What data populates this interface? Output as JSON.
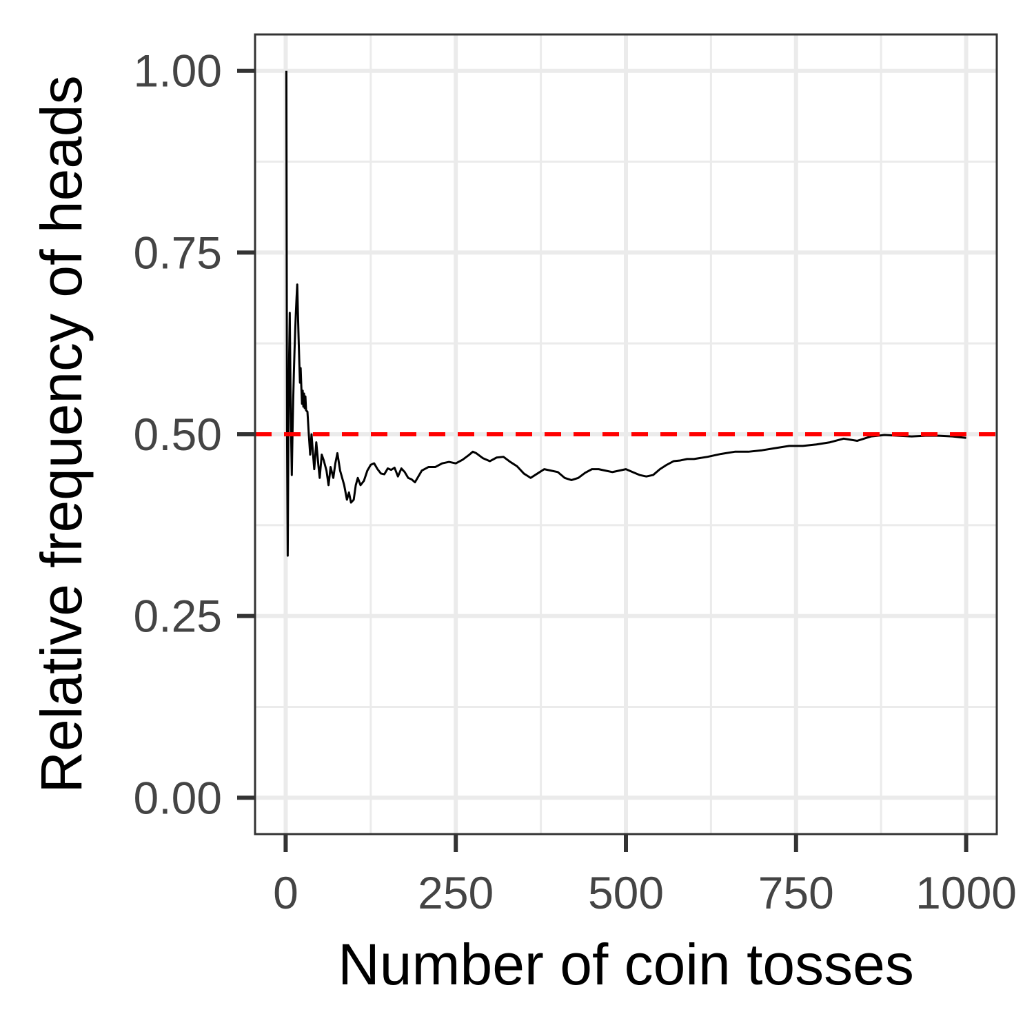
{
  "chart_data": {
    "type": "line",
    "title": "",
    "xlabel": "Number of coin tosses",
    "ylabel": "Relative frequency of heads",
    "xlim": [
      -45,
      1045
    ],
    "ylim": [
      -0.05,
      1.05
    ],
    "x_ticks": [
      0,
      250,
      500,
      750,
      1000
    ],
    "x_tick_labels": [
      "0",
      "250",
      "500",
      "750",
      "1000"
    ],
    "y_ticks": [
      0,
      0.25,
      0.5,
      0.75,
      1.0
    ],
    "y_tick_labels": [
      "0.00",
      "0.25",
      "0.50",
      "0.75",
      "1.00"
    ],
    "grid": true,
    "reference_line": {
      "y": 0.5,
      "color": "#ff0000",
      "style": "dashed"
    },
    "series": [
      {
        "color": "#000000",
        "x": [
          1,
          2,
          3,
          4,
          5,
          6,
          7,
          8,
          9,
          10,
          11,
          12,
          13,
          14,
          15,
          16,
          17,
          18,
          19,
          20,
          21,
          22,
          23,
          24,
          25,
          26,
          27,
          28,
          29,
          30,
          32,
          34,
          36,
          38,
          40,
          42,
          45,
          48,
          50,
          53,
          56,
          60,
          63,
          66,
          70,
          73,
          76,
          80,
          83,
          86,
          90,
          93,
          96,
          100,
          103,
          106,
          110,
          115,
          120,
          125,
          130,
          135,
          140,
          145,
          150,
          155,
          160,
          165,
          170,
          175,
          180,
          185,
          190,
          200,
          210,
          220,
          230,
          240,
          250,
          260,
          270,
          275,
          280,
          290,
          300,
          310,
          320,
          330,
          340,
          350,
          360,
          370,
          380,
          390,
          400,
          410,
          420,
          430,
          440,
          450,
          460,
          470,
          480,
          490,
          500,
          510,
          520,
          530,
          540,
          550,
          560,
          570,
          580,
          590,
          600,
          620,
          640,
          660,
          680,
          700,
          720,
          740,
          760,
          780,
          800,
          820,
          840,
          860,
          880,
          900,
          920,
          940,
          960,
          980,
          1000
        ],
        "y": [
          1.0,
          0.5,
          0.333,
          0.5,
          0.6,
          0.667,
          0.571,
          0.5,
          0.444,
          0.5,
          0.545,
          0.583,
          0.615,
          0.643,
          0.667,
          0.688,
          0.706,
          0.667,
          0.632,
          0.6,
          0.571,
          0.591,
          0.565,
          0.542,
          0.56,
          0.538,
          0.556,
          0.536,
          0.552,
          0.533,
          0.531,
          0.5,
          0.472,
          0.5,
          0.475,
          0.452,
          0.489,
          0.458,
          0.44,
          0.472,
          0.464,
          0.45,
          0.43,
          0.455,
          0.44,
          0.46,
          0.474,
          0.45,
          0.44,
          0.43,
          0.41,
          0.42,
          0.406,
          0.41,
          0.43,
          0.44,
          0.43,
          0.436,
          0.45,
          0.458,
          0.46,
          0.452,
          0.446,
          0.445,
          0.453,
          0.451,
          0.454,
          0.442,
          0.453,
          0.448,
          0.44,
          0.438,
          0.434,
          0.45,
          0.455,
          0.455,
          0.46,
          0.462,
          0.46,
          0.465,
          0.472,
          0.476,
          0.474,
          0.467,
          0.463,
          0.468,
          0.469,
          0.462,
          0.456,
          0.446,
          0.44,
          0.446,
          0.452,
          0.45,
          0.448,
          0.44,
          0.437,
          0.44,
          0.447,
          0.452,
          0.452,
          0.45,
          0.448,
          0.45,
          0.452,
          0.448,
          0.444,
          0.442,
          0.444,
          0.452,
          0.458,
          0.463,
          0.464,
          0.466,
          0.466,
          0.469,
          0.473,
          0.476,
          0.476,
          0.478,
          0.481,
          0.484,
          0.484,
          0.486,
          0.489,
          0.494,
          0.491,
          0.497,
          0.499,
          0.498,
          0.497,
          0.498,
          0.498,
          0.497,
          0.495
        ]
      }
    ]
  }
}
